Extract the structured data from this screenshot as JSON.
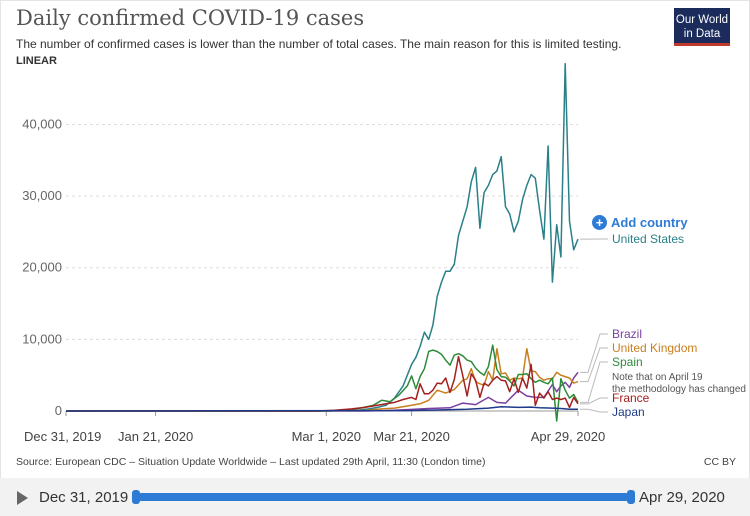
{
  "header": {
    "title": "Daily confirmed COVID-19 cases",
    "subtitle": "The number of confirmed cases is lower than the number of total cases. The main reason for this is limited testing.",
    "scale_toggle": "LINEAR",
    "logo_line1": "Our World",
    "logo_line2": "in Data"
  },
  "add_country_label": "Add country",
  "footer": {
    "source": "Source: European CDC – Situation Update Worldwide – Last updated 29th April, 11:30 (London time)",
    "license": "CC BY"
  },
  "timeline": {
    "start_label": "Dec 31, 2019",
    "end_label": "Apr 29, 2020"
  },
  "colors": {
    "united_states": "#2a8089",
    "brazil": "#7b3fa0",
    "united_kingdom": "#c97f1e",
    "spain": "#2e8b3a",
    "france": "#a3201e",
    "japan": "#1f3a8a",
    "accent": "#2e7bd6"
  },
  "chart_data": {
    "type": "line",
    "title": "Daily confirmed COVID-19 cases",
    "xlabel": "",
    "ylabel": "",
    "x_ticks": [
      "Dec 31, 2019",
      "Jan 21, 2020",
      "Mar 1, 2020",
      "Mar 21, 2020",
      "Apr 29, 2020"
    ],
    "y_ticks": [
      0,
      10000,
      20000,
      30000,
      40000
    ],
    "y_tick_labels": [
      "0",
      "10,000",
      "20,000",
      "30,000",
      "40,000"
    ],
    "ylim": [
      0,
      49000
    ],
    "x_start": "2019-12-31",
    "x_end": "2020-04-29",
    "grid": "horizontal dashed",
    "annotation": "Note that on April 19 the methodology has changed",
    "series": [
      {
        "name": "United States",
        "color": "#2a8089",
        "points": [
          [
            "2019-12-31",
            0
          ],
          [
            "2020-02-29",
            0
          ],
          [
            "2020-03-05",
            50
          ],
          [
            "2020-03-09",
            150
          ],
          [
            "2020-03-11",
            300
          ],
          [
            "2020-03-13",
            500
          ],
          [
            "2020-03-15",
            800
          ],
          [
            "2020-03-17",
            1800
          ],
          [
            "2020-03-19",
            3500
          ],
          [
            "2020-03-20",
            5000
          ],
          [
            "2020-03-21",
            6500
          ],
          [
            "2020-03-22",
            7500
          ],
          [
            "2020-03-23",
            9000
          ],
          [
            "2020-03-24",
            11000
          ],
          [
            "2020-03-25",
            10000
          ],
          [
            "2020-03-26",
            12000
          ],
          [
            "2020-03-27",
            16000
          ],
          [
            "2020-03-28",
            18000
          ],
          [
            "2020-03-29",
            19500
          ],
          [
            "2020-03-30",
            19500
          ],
          [
            "2020-03-31",
            20500
          ],
          [
            "2020-04-01",
            24500
          ],
          [
            "2020-04-02",
            26500
          ],
          [
            "2020-04-03",
            28500
          ],
          [
            "2020-04-04",
            32000
          ],
          [
            "2020-04-05",
            34000
          ],
          [
            "2020-04-06",
            25500
          ],
          [
            "2020-04-07",
            30500
          ],
          [
            "2020-04-08",
            31500
          ],
          [
            "2020-04-09",
            33000
          ],
          [
            "2020-04-10",
            33500
          ],
          [
            "2020-04-11",
            35500
          ],
          [
            "2020-04-12",
            28500
          ],
          [
            "2020-04-13",
            27500
          ],
          [
            "2020-04-14",
            25000
          ],
          [
            "2020-04-15",
            26500
          ],
          [
            "2020-04-16",
            29500
          ],
          [
            "2020-04-17",
            31500
          ],
          [
            "2020-04-18",
            33000
          ],
          [
            "2020-04-19",
            32500
          ],
          [
            "2020-04-20",
            28000
          ],
          [
            "2020-04-21",
            24000
          ],
          [
            "2020-04-22",
            37000
          ],
          [
            "2020-04-23",
            18000
          ],
          [
            "2020-04-24",
            26000
          ],
          [
            "2020-04-25",
            21500
          ],
          [
            "2020-04-26",
            48500
          ],
          [
            "2020-04-27",
            26500
          ],
          [
            "2020-04-28",
            22500
          ],
          [
            "2020-04-29",
            24000
          ]
        ]
      },
      {
        "name": "Brazil",
        "color": "#7b3fa0",
        "points": [
          [
            "2019-12-31",
            0
          ],
          [
            "2020-03-10",
            0
          ],
          [
            "2020-03-15",
            50
          ],
          [
            "2020-03-20",
            200
          ],
          [
            "2020-03-25",
            350
          ],
          [
            "2020-03-30",
            450
          ],
          [
            "2020-04-02",
            1100
          ],
          [
            "2020-04-05",
            900
          ],
          [
            "2020-04-08",
            1900
          ],
          [
            "2020-04-10",
            1200
          ],
          [
            "2020-04-12",
            1100
          ],
          [
            "2020-04-15",
            2900
          ],
          [
            "2020-04-17",
            2100
          ],
          [
            "2020-04-19",
            1900
          ],
          [
            "2020-04-21",
            1900
          ],
          [
            "2020-04-23",
            3700
          ],
          [
            "2020-04-24",
            2700
          ],
          [
            "2020-04-25",
            3500
          ],
          [
            "2020-04-26",
            4000
          ],
          [
            "2020-04-27",
            3300
          ],
          [
            "2020-04-28",
            4600
          ],
          [
            "2020-04-29",
            5400
          ]
        ]
      },
      {
        "name": "United Kingdom",
        "color": "#c97f1e",
        "points": [
          [
            "2019-12-31",
            0
          ],
          [
            "2020-03-05",
            30
          ],
          [
            "2020-03-10",
            80
          ],
          [
            "2020-03-14",
            300
          ],
          [
            "2020-03-17",
            400
          ],
          [
            "2020-03-20",
            700
          ],
          [
            "2020-03-23",
            1000
          ],
          [
            "2020-03-25",
            1500
          ],
          [
            "2020-03-27",
            2900
          ],
          [
            "2020-03-29",
            2500
          ],
          [
            "2020-03-31",
            3000
          ],
          [
            "2020-04-02",
            4300
          ],
          [
            "2020-04-03",
            4500
          ],
          [
            "2020-04-04",
            5900
          ],
          [
            "2020-04-05",
            4100
          ],
          [
            "2020-04-06",
            3800
          ],
          [
            "2020-04-07",
            3600
          ],
          [
            "2020-04-08",
            5500
          ],
          [
            "2020-04-09",
            4300
          ],
          [
            "2020-04-10",
            8700
          ],
          [
            "2020-04-11",
            5200
          ],
          [
            "2020-04-12",
            5300
          ],
          [
            "2020-04-13",
            4300
          ],
          [
            "2020-04-14",
            4600
          ],
          [
            "2020-04-15",
            4500
          ],
          [
            "2020-04-16",
            4600
          ],
          [
            "2020-04-17",
            8700
          ],
          [
            "2020-04-18",
            5600
          ],
          [
            "2020-04-19",
            5500
          ],
          [
            "2020-04-20",
            4700
          ],
          [
            "2020-04-21",
            4300
          ],
          [
            "2020-04-22",
            4500
          ],
          [
            "2020-04-23",
            4500
          ],
          [
            "2020-04-24",
            5400
          ],
          [
            "2020-04-25",
            5000
          ],
          [
            "2020-04-26",
            4800
          ],
          [
            "2020-04-27",
            4600
          ],
          [
            "2020-04-28",
            3900
          ],
          [
            "2020-04-29",
            4100
          ]
        ]
      },
      {
        "name": "Spain",
        "color": "#2e8b3a",
        "points": [
          [
            "2019-12-31",
            0
          ],
          [
            "2020-03-01",
            0
          ],
          [
            "2020-03-05",
            100
          ],
          [
            "2020-03-09",
            400
          ],
          [
            "2020-03-12",
            800
          ],
          [
            "2020-03-14",
            1500
          ],
          [
            "2020-03-16",
            1300
          ],
          [
            "2020-03-18",
            2200
          ],
          [
            "2020-03-20",
            3500
          ],
          [
            "2020-03-21",
            4900
          ],
          [
            "2020-03-22",
            3100
          ],
          [
            "2020-03-23",
            4800
          ],
          [
            "2020-03-24",
            5900
          ],
          [
            "2020-03-25",
            8300
          ],
          [
            "2020-03-26",
            8500
          ],
          [
            "2020-03-27",
            8300
          ],
          [
            "2020-03-28",
            7900
          ],
          [
            "2020-03-29",
            7100
          ],
          [
            "2020-03-30",
            6400
          ],
          [
            "2020-03-31",
            7800
          ],
          [
            "2020-04-01",
            8000
          ],
          [
            "2020-04-02",
            7700
          ],
          [
            "2020-04-03",
            7100
          ],
          [
            "2020-04-04",
            6900
          ],
          [
            "2020-04-05",
            6000
          ],
          [
            "2020-04-06",
            5400
          ],
          [
            "2020-04-07",
            5000
          ],
          [
            "2020-04-08",
            6200
          ],
          [
            "2020-04-09",
            9200
          ],
          [
            "2020-04-10",
            5800
          ],
          [
            "2020-04-11",
            4800
          ],
          [
            "2020-04-12",
            4700
          ],
          [
            "2020-04-13",
            4200
          ],
          [
            "2020-04-14",
            3500
          ],
          [
            "2020-04-15",
            5100
          ],
          [
            "2020-04-16",
            5100
          ],
          [
            "2020-04-17",
            5200
          ],
          [
            "2020-04-18",
            4500
          ],
          [
            "2020-04-19",
            4000
          ],
          [
            "2020-04-20",
            4300
          ],
          [
            "2020-04-21",
            4000
          ],
          [
            "2020-04-22",
            3800
          ],
          [
            "2020-04-23",
            4600
          ],
          [
            "2020-04-24",
            -1400
          ],
          [
            "2020-04-25",
            4500
          ],
          [
            "2020-04-26",
            2900
          ],
          [
            "2020-04-27",
            1800
          ],
          [
            "2020-04-28",
            2300
          ],
          [
            "2020-04-29",
            1200
          ]
        ]
      },
      {
        "name": "France",
        "color": "#a3201e",
        "points": [
          [
            "2019-12-31",
            0
          ],
          [
            "2020-02-28",
            0
          ],
          [
            "2020-03-03",
            100
          ],
          [
            "2020-03-07",
            300
          ],
          [
            "2020-03-10",
            500
          ],
          [
            "2020-03-13",
            800
          ],
          [
            "2020-03-15",
            1000
          ],
          [
            "2020-03-17",
            1200
          ],
          [
            "2020-03-19",
            1600
          ],
          [
            "2020-03-21",
            1900
          ],
          [
            "2020-03-22",
            1600
          ],
          [
            "2020-03-23",
            3800
          ],
          [
            "2020-03-24",
            2400
          ],
          [
            "2020-03-25",
            2400
          ],
          [
            "2020-03-26",
            2900
          ],
          [
            "2020-03-27",
            3900
          ],
          [
            "2020-03-28",
            3800
          ],
          [
            "2020-03-29",
            4600
          ],
          [
            "2020-03-30",
            2600
          ],
          [
            "2020-03-31",
            4400
          ],
          [
            "2020-04-01",
            7600
          ],
          [
            "2020-04-02",
            4900
          ],
          [
            "2020-04-03",
            2100
          ],
          [
            "2020-04-04",
            5200
          ],
          [
            "2020-04-05",
            4300
          ],
          [
            "2020-04-06",
            1900
          ],
          [
            "2020-04-07",
            3900
          ],
          [
            "2020-04-08",
            3500
          ],
          [
            "2020-04-09",
            4300
          ],
          [
            "2020-04-10",
            4800
          ],
          [
            "2020-04-11",
            4300
          ],
          [
            "2020-04-12",
            4200
          ],
          [
            "2020-04-13",
            2700
          ],
          [
            "2020-04-14",
            4500
          ],
          [
            "2020-04-15",
            2600
          ],
          [
            "2020-04-16",
            4600
          ],
          [
            "2020-04-17",
            3200
          ],
          [
            "2020-04-18",
            6500
          ],
          [
            "2020-04-19",
            800
          ],
          [
            "2020-04-20",
            2500
          ],
          [
            "2020-04-21",
            1800
          ],
          [
            "2020-04-22",
            2700
          ],
          [
            "2020-04-23",
            1600
          ],
          [
            "2020-04-24",
            1800
          ],
          [
            "2020-04-25",
            1600
          ],
          [
            "2020-04-26",
            1800
          ],
          [
            "2020-04-27",
            500
          ],
          [
            "2020-04-28",
            1900
          ],
          [
            "2020-04-29",
            1000
          ]
        ]
      },
      {
        "name": "Japan",
        "color": "#1f3a8a",
        "points": [
          [
            "2019-12-31",
            0
          ],
          [
            "2020-03-20",
            50
          ],
          [
            "2020-03-28",
            150
          ],
          [
            "2020-04-03",
            250
          ],
          [
            "2020-04-08",
            400
          ],
          [
            "2020-04-11",
            600
          ],
          [
            "2020-04-15",
            500
          ],
          [
            "2020-04-18",
            550
          ],
          [
            "2020-04-20",
            450
          ],
          [
            "2020-04-23",
            400
          ],
          [
            "2020-04-25",
            350
          ],
          [
            "2020-04-27",
            250
          ],
          [
            "2020-04-29",
            250
          ]
        ]
      }
    ]
  }
}
